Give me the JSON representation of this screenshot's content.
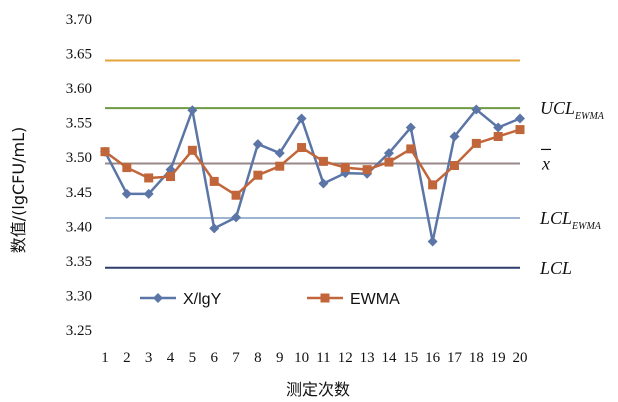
{
  "chart_data": {
    "type": "line",
    "xlabel": "测定次数",
    "ylabel": "数值/(lgCFU/mL)",
    "categories": [
      "1",
      "2",
      "3",
      "4",
      "5",
      "6",
      "7",
      "8",
      "9",
      "10",
      "11",
      "12",
      "13",
      "14",
      "15",
      "16",
      "17",
      "18",
      "19",
      "20"
    ],
    "ylim": [
      3.25,
      3.7
    ],
    "yticks": [
      "3.25",
      "3.30",
      "3.35",
      "3.40",
      "3.45",
      "3.50",
      "3.55",
      "3.60",
      "3.65",
      "3.70"
    ],
    "series": [
      {
        "name": "X/lgY",
        "color": "#5b76a6",
        "marker": "diamond",
        "values": [
          3.508,
          3.447,
          3.447,
          3.482,
          3.568,
          3.397,
          3.413,
          3.519,
          3.506,
          3.556,
          3.462,
          3.477,
          3.476,
          3.506,
          3.543,
          3.378,
          3.53,
          3.569,
          3.543,
          3.556
        ]
      },
      {
        "name": "EWMA",
        "color": "#c0663a",
        "marker": "square",
        "values": [
          3.508,
          3.485,
          3.47,
          3.472,
          3.51,
          3.465,
          3.445,
          3.474,
          3.487,
          3.514,
          3.494,
          3.485,
          3.482,
          3.493,
          3.512,
          3.46,
          3.488,
          3.52,
          3.53,
          3.54
        ]
      }
    ],
    "reference_lines": [
      {
        "id": "ucl",
        "value": 3.64,
        "color": "#e3a43c",
        "label": "",
        "sub": ""
      },
      {
        "id": "ucl-ewma",
        "value": 3.571,
        "color": "#6e9a44",
        "label": "UCL",
        "sub": "EWMA"
      },
      {
        "id": "mean",
        "value": 3.491,
        "color": "#9a8888",
        "label": "x",
        "sub": ""
      },
      {
        "id": "lcl-ewma",
        "value": 3.412,
        "color": "#9eb5d2",
        "label": "LCL",
        "sub": "EWMA"
      },
      {
        "id": "lcl",
        "value": 3.34,
        "color": "#2f3d6e",
        "label": "LCL",
        "sub": ""
      }
    ],
    "legend": {
      "position": "bottom-left-inside"
    }
  }
}
